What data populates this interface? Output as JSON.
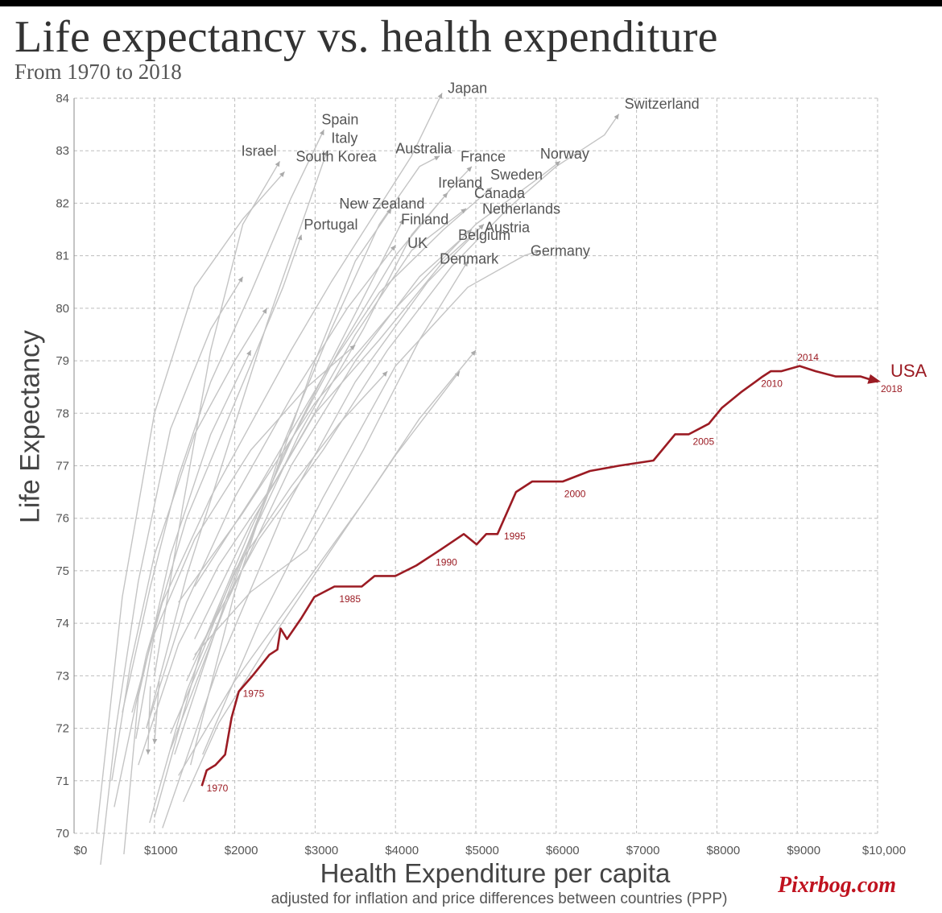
{
  "title": "Life expectancy vs. health expenditure",
  "subtitle": "From 1970 to 2018",
  "watermark": "Pixrbog.com",
  "colors": {
    "usa": "#9b1b23",
    "others": "#c4c4c4",
    "grid": "#bdbdbd",
    "text": "#444444"
  },
  "chart_data": {
    "type": "line",
    "title": "Life expectancy vs. health expenditure",
    "subtitle": "From 1970 to 2018",
    "xlabel": "Health Expenditure per capita",
    "xlabel_note": "adjusted for inflation and price differences between countries (PPP)",
    "ylabel": "Life Expectancy",
    "xlim": [
      0,
      10000
    ],
    "ylim": [
      70,
      84
    ],
    "grid": true,
    "x_ticks": [
      0,
      1000,
      2000,
      3000,
      4000,
      5000,
      6000,
      7000,
      8000,
      9000,
      10000
    ],
    "x_tick_labels": [
      "$0",
      "$1000",
      "$2000",
      "$3000",
      "$4000",
      "$5000",
      "$6000",
      "$7000",
      "$8000",
      "$9000",
      "$10,000"
    ],
    "y_ticks": [
      70,
      71,
      72,
      73,
      74,
      75,
      76,
      77,
      78,
      79,
      80,
      81,
      82,
      83,
      84
    ],
    "y_tick_labels": [
      "70",
      "71",
      "72",
      "73",
      "74",
      "75",
      "76",
      "77",
      "78",
      "79",
      "80",
      "81",
      "82",
      "83",
      "84"
    ],
    "highlight": {
      "name": "USA",
      "points": [
        [
          1590,
          70.9
        ],
        [
          1650,
          71.2
        ],
        [
          1760,
          71.3
        ],
        [
          1880,
          71.5
        ],
        [
          1960,
          72.2
        ],
        [
          2050,
          72.7
        ],
        [
          2220,
          73.0
        ],
        [
          2430,
          73.4
        ],
        [
          2530,
          73.5
        ],
        [
          2570,
          73.9
        ],
        [
          2650,
          73.7
        ],
        [
          2830,
          74.1
        ],
        [
          2990,
          74.5
        ],
        [
          3240,
          74.7
        ],
        [
          3580,
          74.7
        ],
        [
          3740,
          74.9
        ],
        [
          4000,
          74.9
        ],
        [
          4260,
          75.1
        ],
        [
          4560,
          75.4
        ],
        [
          4850,
          75.7
        ],
        [
          5010,
          75.5
        ],
        [
          5130,
          75.7
        ],
        [
          5270,
          75.7
        ],
        [
          5500,
          76.5
        ],
        [
          5700,
          76.7
        ],
        [
          6080,
          76.7
        ],
        [
          6420,
          76.9
        ],
        [
          6780,
          77.0
        ],
        [
          7210,
          77.1
        ],
        [
          7480,
          77.6
        ],
        [
          7650,
          77.6
        ],
        [
          7900,
          77.8
        ],
        [
          8060,
          78.1
        ],
        [
          8300,
          78.4
        ],
        [
          8480,
          78.6
        ],
        [
          8570,
          78.7
        ],
        [
          8670,
          78.8
        ],
        [
          8800,
          78.8
        ],
        [
          9030,
          78.9
        ],
        [
          9230,
          78.8
        ],
        [
          9480,
          78.7
        ],
        [
          9790,
          78.7
        ],
        [
          10000,
          78.6
        ]
      ],
      "year_labels": [
        {
          "year": "1970",
          "x": 1650,
          "y": 70.8
        },
        {
          "year": "1975",
          "x": 2100,
          "y": 72.6
        },
        {
          "year": "1985",
          "x": 3300,
          "y": 74.4
        },
        {
          "year": "1990",
          "x": 4500,
          "y": 75.1
        },
        {
          "year": "1995",
          "x": 5350,
          "y": 75.6
        },
        {
          "year": "2000",
          "x": 6100,
          "y": 76.4
        },
        {
          "year": "2005",
          "x": 7700,
          "y": 77.4
        },
        {
          "year": "2010",
          "x": 8550,
          "y": 78.5
        },
        {
          "year": "2014",
          "x": 9000,
          "y": 79.0
        },
        {
          "year": "2018",
          "x": 10040,
          "y": 78.4
        }
      ]
    },
    "series": [
      {
        "name": "Japan",
        "label_x": 4650,
        "label_y": 84.1,
        "points": [
          [
            720,
            72.3
          ],
          [
            1100,
            74.4
          ],
          [
            1700,
            76.4
          ],
          [
            2200,
            77.8
          ],
          [
            2700,
            79.2
          ],
          [
            3200,
            80.5
          ],
          [
            3700,
            81.7
          ],
          [
            4200,
            82.9
          ],
          [
            4580,
            84.1
          ]
        ]
      },
      {
        "name": "Switzerland",
        "label_x": 6850,
        "label_y": 83.8,
        "points": [
          [
            1480,
            73.3
          ],
          [
            2300,
            75.6
          ],
          [
            3100,
            77.3
          ],
          [
            3900,
            79.2
          ],
          [
            4700,
            80.8
          ],
          [
            5400,
            81.9
          ],
          [
            6000,
            82.7
          ],
          [
            6600,
            83.3
          ],
          [
            6780,
            83.7
          ]
        ]
      },
      {
        "name": "Spain",
        "label_x": 3080,
        "label_y": 83.5,
        "points": [
          [
            600,
            72.3
          ],
          [
            950,
            74.7
          ],
          [
            1300,
            76.8
          ],
          [
            1700,
            78.6
          ],
          [
            2200,
            80.3
          ],
          [
            2700,
            82.1
          ],
          [
            3110,
            83.4
          ]
        ]
      },
      {
        "name": "Italy",
        "label_x": 3200,
        "label_y": 83.15,
        "points": [
          [
            900,
            72.0
          ],
          [
            1400,
            74.9
          ],
          [
            1900,
            77.3
          ],
          [
            2400,
            79.7
          ],
          [
            2900,
            81.9
          ],
          [
            3150,
            83.0
          ]
        ]
      },
      {
        "name": "Israel",
        "label_x": 2080,
        "label_y": 82.9,
        "points": [
          [
            1000,
            73.0
          ],
          [
            1350,
            76.2
          ],
          [
            1700,
            79.2
          ],
          [
            2100,
            81.6
          ],
          [
            2560,
            82.8
          ]
        ]
      },
      {
        "name": "South Korea",
        "label_x": 2760,
        "label_y": 82.8,
        "points": [
          [
            280,
            70.0
          ],
          [
            600,
            74.5
          ],
          [
            1000,
            78.0
          ],
          [
            1500,
            80.4
          ],
          [
            2100,
            81.7
          ],
          [
            2620,
            82.6
          ]
        ]
      },
      {
        "name": "Australia",
        "label_x": 4000,
        "label_y": 82.95,
        "points": [
          [
            1450,
            71.3
          ],
          [
            2000,
            74.6
          ],
          [
            2600,
            77.4
          ],
          [
            3200,
            79.6
          ],
          [
            3800,
            81.6
          ],
          [
            4300,
            82.7
          ],
          [
            4550,
            82.9
          ]
        ]
      },
      {
        "name": "France",
        "label_x": 4810,
        "label_y": 82.8,
        "points": [
          [
            1250,
            71.5
          ],
          [
            1900,
            74.5
          ],
          [
            2600,
            77.2
          ],
          [
            3300,
            79.2
          ],
          [
            4000,
            81.0
          ],
          [
            4700,
            82.3
          ],
          [
            4950,
            82.7
          ]
        ]
      },
      {
        "name": "Norway",
        "label_x": 5800,
        "label_y": 82.85,
        "points": [
          [
            1300,
            74.4
          ],
          [
            2100,
            76.1
          ],
          [
            3000,
            78.2
          ],
          [
            4000,
            80.0
          ],
          [
            5000,
            81.6
          ],
          [
            5800,
            82.5
          ],
          [
            6050,
            82.8
          ]
        ]
      },
      {
        "name": "Sweden",
        "label_x": 5180,
        "label_y": 82.45,
        "points": [
          [
            1500,
            74.7
          ],
          [
            2300,
            76.6
          ],
          [
            3100,
            78.7
          ],
          [
            3800,
            80.3
          ],
          [
            4600,
            81.5
          ],
          [
            5200,
            82.3
          ]
        ]
      },
      {
        "name": "Ireland",
        "label_x": 4530,
        "label_y": 82.3,
        "points": [
          [
            800,
            71.3
          ],
          [
            1300,
            73.6
          ],
          [
            1800,
            75.1
          ],
          [
            2500,
            76.7
          ],
          [
            3600,
            79.6
          ],
          [
            4200,
            81.4
          ],
          [
            4650,
            82.2
          ]
        ]
      },
      {
        "name": "Canada",
        "label_x": 4980,
        "label_y": 82.1,
        "points": [
          [
            1400,
            72.9
          ],
          [
            2100,
            75.3
          ],
          [
            2800,
            77.6
          ],
          [
            3500,
            79.5
          ],
          [
            4200,
            81.1
          ],
          [
            4880,
            81.9
          ]
        ]
      },
      {
        "name": "New Zealand",
        "label_x": 3300,
        "label_y": 81.9,
        "points": [
          [
            1200,
            71.6
          ],
          [
            1800,
            74.0
          ],
          [
            2400,
            76.4
          ],
          [
            3000,
            79.0
          ],
          [
            3500,
            80.9
          ],
          [
            3950,
            81.9
          ]
        ]
      },
      {
        "name": "Netherlands",
        "label_x": 5080,
        "label_y": 81.8,
        "points": [
          [
            1500,
            73.7
          ],
          [
            2200,
            75.9
          ],
          [
            3000,
            78.0
          ],
          [
            3800,
            79.4
          ],
          [
            4600,
            80.9
          ],
          [
            5100,
            81.6
          ]
        ]
      },
      {
        "name": "Finland",
        "label_x": 4070,
        "label_y": 81.6,
        "points": [
          [
            1000,
            70.3
          ],
          [
            1600,
            73.6
          ],
          [
            2200,
            75.8
          ],
          [
            2800,
            77.8
          ],
          [
            3500,
            79.9
          ],
          [
            4100,
            81.7
          ]
        ]
      },
      {
        "name": "Austria",
        "label_x": 5110,
        "label_y": 81.45,
        "points": [
          [
            1100,
            70.1
          ],
          [
            1800,
            73.2
          ],
          [
            2600,
            76.1
          ],
          [
            3500,
            78.6
          ],
          [
            4400,
            80.5
          ],
          [
            5100,
            81.6
          ]
        ]
      },
      {
        "name": "Portugal",
        "label_x": 2860,
        "label_y": 81.5,
        "points": [
          [
            500,
            70.5
          ],
          [
            900,
            73.4
          ],
          [
            1400,
            76.0
          ],
          [
            2000,
            78.2
          ],
          [
            2600,
            80.4
          ],
          [
            2830,
            81.4
          ]
        ]
      },
      {
        "name": "Belgium",
        "label_x": 4780,
        "label_y": 81.3,
        "points": [
          [
            1200,
            71.9
          ],
          [
            1900,
            74.4
          ],
          [
            2700,
            77.0
          ],
          [
            3500,
            79.0
          ],
          [
            4300,
            80.6
          ],
          [
            4950,
            81.5
          ]
        ]
      },
      {
        "name": "UK",
        "label_x": 4150,
        "label_y": 81.15,
        "points": [
          [
            900,
            72.0
          ],
          [
            1400,
            74.4
          ],
          [
            2000,
            76.4
          ],
          [
            2700,
            78.3
          ],
          [
            3400,
            80.0
          ],
          [
            4000,
            81.2
          ]
        ]
      },
      {
        "name": "Germany",
        "label_x": 5680,
        "label_y": 81.0,
        "points": [
          [
            1600,
            71.5
          ],
          [
            2300,
            74.0
          ],
          [
            3100,
            76.4
          ],
          [
            4000,
            78.9
          ],
          [
            4900,
            80.4
          ],
          [
            5600,
            81.0
          ],
          [
            5800,
            81.1
          ]
        ]
      },
      {
        "name": "Denmark",
        "label_x": 4550,
        "label_y": 80.85,
        "points": [
          [
            1500,
            73.4
          ],
          [
            2200,
            74.6
          ],
          [
            2900,
            75.4
          ],
          [
            3600,
            77.3
          ],
          [
            4300,
            79.4
          ],
          [
            4900,
            80.9
          ]
        ]
      },
      {
        "points": [
          [
            330,
            69.4
          ],
          [
            520,
            72.0
          ],
          [
            800,
            74.8
          ],
          [
            1200,
            77.7
          ],
          [
            1700,
            79.6
          ],
          [
            2100,
            80.6
          ]
        ]
      },
      {
        "points": [
          [
            620,
            69.6
          ],
          [
            800,
            72.6
          ],
          [
            1200,
            75.3
          ],
          [
            1700,
            77.6
          ],
          [
            2200,
            79.2
          ]
        ]
      },
      {
        "points": [
          [
            940,
            70.2
          ],
          [
            1400,
            72.7
          ],
          [
            2000,
            75.0
          ],
          [
            2700,
            76.6
          ],
          [
            3300,
            77.8
          ],
          [
            3900,
            78.8
          ]
        ]
      },
      {
        "points": [
          [
            1360,
            70.6
          ],
          [
            1800,
            72.1
          ],
          [
            2500,
            73.8
          ],
          [
            3200,
            75.4
          ],
          [
            4000,
            77.2
          ],
          [
            4800,
            78.8
          ]
        ]
      },
      {
        "points": [
          [
            1300,
            71.1
          ],
          [
            2000,
            72.9
          ],
          [
            2800,
            74.6
          ],
          [
            3600,
            76.3
          ],
          [
            4300,
            77.9
          ],
          [
            5000,
            79.2
          ]
        ]
      },
      {
        "points": [
          [
            470,
            71.0
          ],
          [
            700,
            73.2
          ],
          [
            1000,
            75.3
          ],
          [
            1500,
            77.6
          ],
          [
            2000,
            79.0
          ],
          [
            2400,
            80.0
          ]
        ]
      },
      {
        "points": [
          [
            950,
            72.8
          ],
          [
            930,
            72.0
          ],
          [
            920,
            71.5
          ]
        ]
      },
      {
        "points": [
          [
            1060,
            72.9
          ],
          [
            1030,
            72.3
          ],
          [
            1000,
            71.7
          ]
        ]
      },
      {
        "points": [
          [
            770,
            71.8
          ],
          [
            1000,
            73.8
          ],
          [
            1500,
            75.6
          ],
          [
            2200,
            77.3
          ],
          [
            2900,
            78.5
          ],
          [
            3500,
            79.3
          ]
        ]
      }
    ]
  }
}
